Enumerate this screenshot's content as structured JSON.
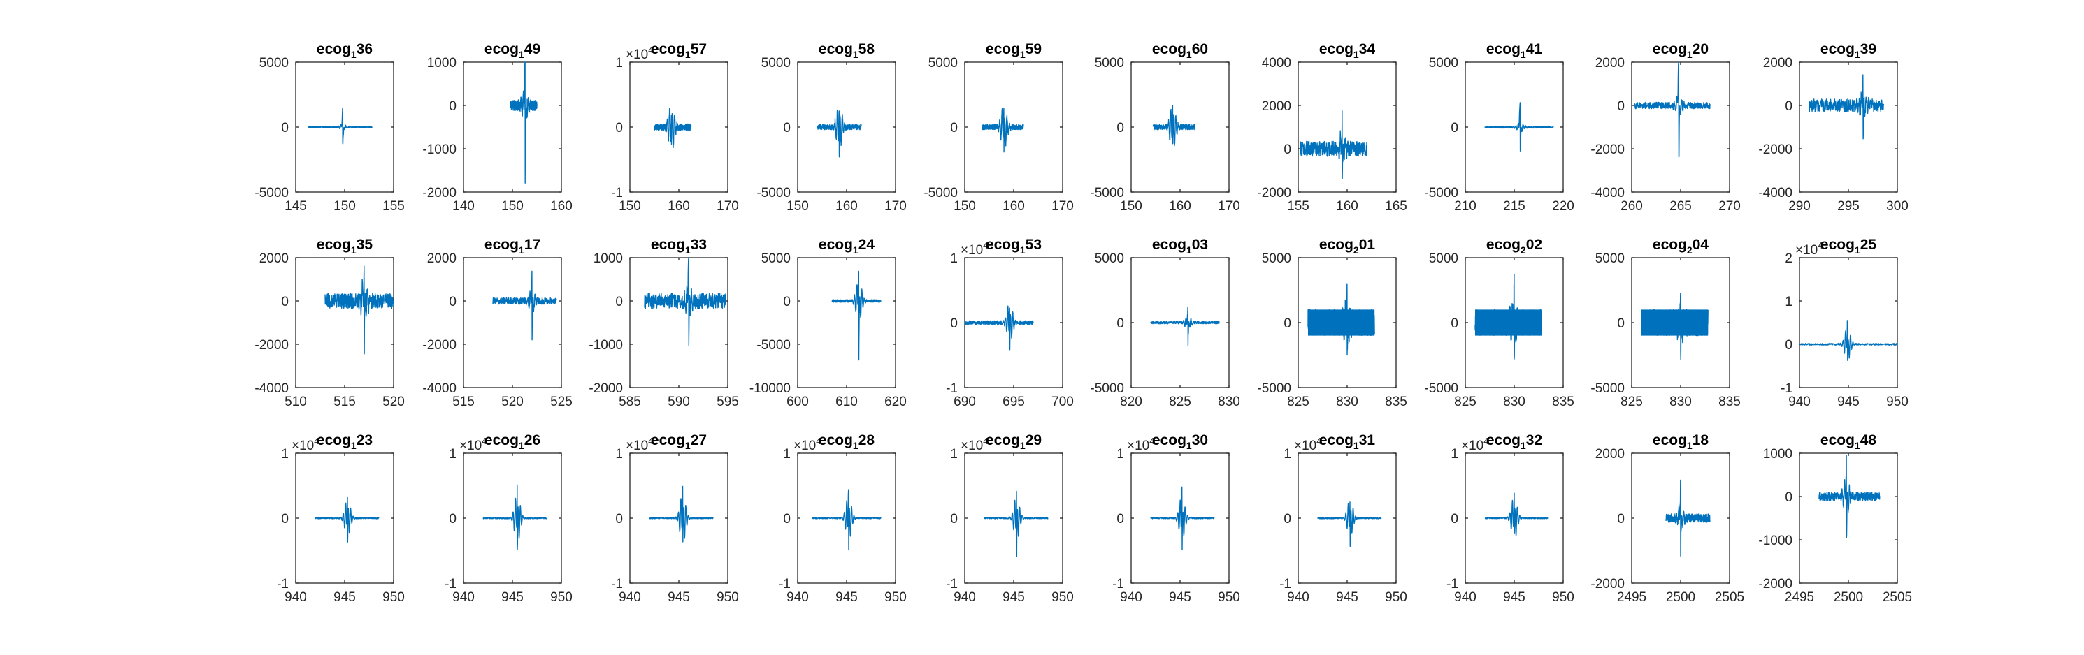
{
  "figure": {
    "line_color": "#0072BD",
    "axis_color": "#262626",
    "background": "#ffffff"
  },
  "chart_data": [
    {
      "type": "line",
      "title": {
        "base": "ecog",
        "sub": "1",
        "suffix": "36"
      },
      "xlim": [
        145,
        155
      ],
      "ylim": [
        -5000,
        5000
      ],
      "xticks": [
        145,
        150,
        155
      ],
      "yticks": [
        -5000,
        0,
        5000
      ],
      "ytick_labels": [
        "-5000",
        "0",
        "5000"
      ],
      "exponent": "",
      "trace": {
        "start": 146.3,
        "end": 152.8,
        "onset": 149.8,
        "amp": 1900,
        "noise": 60,
        "tail": 180,
        "dense": false
      }
    },
    {
      "type": "line",
      "title": {
        "base": "ecog",
        "sub": "1",
        "suffix": "49"
      },
      "xlim": [
        140,
        160
      ],
      "ylim": [
        -2000,
        1000
      ],
      "xticks": [
        140,
        150,
        160
      ],
      "yticks": [
        -2000,
        -1000,
        0,
        1000
      ],
      "ytick_labels": [
        "-2000",
        "-1000",
        "0",
        "1000"
      ],
      "exponent": "",
      "trace": {
        "start": 149.6,
        "end": 155.0,
        "onset": 152.6,
        "amp": 2000,
        "noise": 120,
        "tail": 300,
        "dense": false
      }
    },
    {
      "type": "line",
      "title": {
        "base": "ecog",
        "sub": "1",
        "suffix": "57"
      },
      "xlim": [
        150,
        170
      ],
      "ylim": [
        -1,
        1
      ],
      "xticks": [
        150,
        160,
        170
      ],
      "yticks": [
        -1,
        0,
        1
      ],
      "ytick_labels": [
        "-1",
        "0",
        "1"
      ],
      "exponent": "4",
      "trace": {
        "start": 155.0,
        "end": 162.5,
        "onset": 158.5,
        "amp": 0.45,
        "noise": 0.05,
        "tail": 0.35,
        "dense": false
      }
    },
    {
      "type": "line",
      "title": {
        "base": "ecog",
        "sub": "1",
        "suffix": "58"
      },
      "xlim": [
        150,
        170
      ],
      "ylim": [
        -5000,
        5000
      ],
      "xticks": [
        150,
        160,
        170
      ],
      "yticks": [
        -5000,
        0,
        5000
      ],
      "ytick_labels": [
        "-5000",
        "0",
        "5000"
      ],
      "exponent": "",
      "trace": {
        "start": 154.0,
        "end": 163.0,
        "onset": 158.5,
        "amp": 2700,
        "noise": 200,
        "tail": 1800,
        "dense": false
      }
    },
    {
      "type": "line",
      "title": {
        "base": "ecog",
        "sub": "1",
        "suffix": "59"
      },
      "xlim": [
        150,
        170
      ],
      "ylim": [
        -5000,
        5000
      ],
      "xticks": [
        150,
        160,
        170
      ],
      "yticks": [
        -5000,
        0,
        5000
      ],
      "ytick_labels": [
        "-5000",
        "0",
        "5000"
      ],
      "exponent": "",
      "trace": {
        "start": 153.5,
        "end": 162.0,
        "onset": 158.0,
        "amp": 2900,
        "noise": 200,
        "tail": 1700,
        "dense": false
      }
    },
    {
      "type": "line",
      "title": {
        "base": "ecog",
        "sub": "1",
        "suffix": "60"
      },
      "xlim": [
        150,
        170
      ],
      "ylim": [
        -5000,
        5000
      ],
      "xticks": [
        150,
        160,
        170
      ],
      "yticks": [
        -5000,
        0,
        5000
      ],
      "ytick_labels": [
        "-5000",
        "0",
        "5000"
      ],
      "exponent": "",
      "trace": {
        "start": 154.5,
        "end": 163.0,
        "onset": 158.5,
        "amp": 2700,
        "noise": 200,
        "tail": 1800,
        "dense": false
      }
    },
    {
      "type": "line",
      "title": {
        "base": "ecog",
        "sub": "1",
        "suffix": "34"
      },
      "xlim": [
        155,
        165
      ],
      "ylim": [
        -2000,
        4000
      ],
      "xticks": [
        155,
        160,
        165
      ],
      "yticks": [
        -2000,
        0,
        2000,
        4000
      ],
      "ytick_labels": [
        "-2000",
        "0",
        "2000",
        "4000"
      ],
      "exponent": "",
      "trace": {
        "start": 155.2,
        "end": 162.0,
        "onset": 159.5,
        "amp": 2100,
        "noise": 350,
        "tail": 700,
        "dense": false
      }
    },
    {
      "type": "line",
      "title": {
        "base": "ecog",
        "sub": "1",
        "suffix": "41"
      },
      "xlim": [
        210,
        220
      ],
      "ylim": [
        -5000,
        5000
      ],
      "xticks": [
        210,
        215,
        220
      ],
      "yticks": [
        -5000,
        0,
        5000
      ],
      "ytick_labels": [
        "-5000",
        "0",
        "5000"
      ],
      "exponent": "",
      "trace": {
        "start": 212.0,
        "end": 219.0,
        "onset": 215.6,
        "amp": 3300,
        "noise": 80,
        "tail": 400,
        "dense": false
      }
    },
    {
      "type": "line",
      "title": {
        "base": "ecog",
        "sub": "1",
        "suffix": "20"
      },
      "xlim": [
        260,
        270
      ],
      "ylim": [
        -4000,
        2000
      ],
      "xticks": [
        260,
        265,
        270
      ],
      "yticks": [
        -4000,
        -2000,
        0,
        2000
      ],
      "ytick_labels": [
        "-4000",
        "-2000",
        "0",
        "2000"
      ],
      "exponent": "",
      "trace": {
        "start": 260.3,
        "end": 268.0,
        "onset": 264.8,
        "amp": 3800,
        "noise": 150,
        "tail": 500,
        "dense": false
      }
    },
    {
      "type": "line",
      "title": {
        "base": "ecog",
        "sub": "1",
        "suffix": "39"
      },
      "xlim": [
        290,
        300
      ],
      "ylim": [
        -4000,
        2000
      ],
      "xticks": [
        290,
        295,
        300
      ],
      "yticks": [
        -4000,
        -2000,
        0,
        2000
      ],
      "ytick_labels": [
        "-4000",
        "-2000",
        "0",
        "2000"
      ],
      "exponent": "",
      "trace": {
        "start": 291.0,
        "end": 298.6,
        "onset": 296.5,
        "amp": 2300,
        "noise": 300,
        "tail": 700,
        "dense": false
      }
    },
    {
      "type": "line",
      "title": {
        "base": "ecog",
        "sub": "1",
        "suffix": "35"
      },
      "xlim": [
        510,
        520
      ],
      "ylim": [
        -4000,
        2000
      ],
      "xticks": [
        510,
        515,
        520
      ],
      "yticks": [
        -4000,
        -2000,
        0,
        2000
      ],
      "ytick_labels": [
        "-4000",
        "-2000",
        "0",
        "2000"
      ],
      "exponent": "",
      "trace": {
        "start": 513.0,
        "end": 520.0,
        "onset": 517.0,
        "amp": 3800,
        "noise": 350,
        "tail": 1100,
        "dense": false
      }
    },
    {
      "type": "line",
      "title": {
        "base": "ecog",
        "sub": "1",
        "suffix": "17"
      },
      "xlim": [
        515,
        525
      ],
      "ylim": [
        -4000,
        2000
      ],
      "xticks": [
        515,
        520,
        525
      ],
      "yticks": [
        -4000,
        -2000,
        0,
        2000
      ],
      "ytick_labels": [
        "-4000",
        "-2000",
        "0",
        "2000"
      ],
      "exponent": "",
      "trace": {
        "start": 518.0,
        "end": 524.5,
        "onset": 522.0,
        "amp": 2000,
        "noise": 150,
        "tail": 500,
        "dense": false
      }
    },
    {
      "type": "line",
      "title": {
        "base": "ecog",
        "sub": "1",
        "suffix": "33"
      },
      "xlim": [
        585,
        595
      ],
      "ylim": [
        -2000,
        1000
      ],
      "xticks": [
        585,
        590,
        595
      ],
      "yticks": [
        -2000,
        -1000,
        0,
        1000
      ],
      "ytick_labels": [
        "-2000",
        "-1000",
        "0",
        "1000"
      ],
      "exponent": "",
      "trace": {
        "start": 586.5,
        "end": 594.8,
        "onset": 591.0,
        "amp": 1800,
        "noise": 180,
        "tail": 300,
        "dense": false
      }
    },
    {
      "type": "line",
      "title": {
        "base": "ecog",
        "sub": "1",
        "suffix": "24"
      },
      "xlim": [
        600,
        620
      ],
      "ylim": [
        -10000,
        5000
      ],
      "xticks": [
        600,
        610,
        620
      ],
      "yticks": [
        -10000,
        -5000,
        0,
        5000
      ],
      "ytick_labels": [
        "-10000",
        "-5000",
        "0",
        "5000"
      ],
      "exponent": "",
      "trace": {
        "start": 607.0,
        "end": 617.0,
        "onset": 612.5,
        "amp": 7000,
        "noise": 150,
        "tail": 2500,
        "dense": false
      }
    },
    {
      "type": "line",
      "title": {
        "base": "ecog",
        "sub": "1",
        "suffix": "53"
      },
      "xlim": [
        690,
        700
      ],
      "ylim": [
        -1,
        1
      ],
      "xticks": [
        690,
        695,
        700
      ],
      "yticks": [
        -1,
        0,
        1
      ],
      "ytick_labels": [
        "-1",
        "0",
        "1"
      ],
      "exponent": "4",
      "trace": {
        "start": 690.0,
        "end": 697.0,
        "onset": 694.6,
        "amp": 0.55,
        "noise": 0.03,
        "tail": 0.3,
        "dense": false
      }
    },
    {
      "type": "line",
      "title": {
        "base": "ecog",
        "sub": "1",
        "suffix": "03"
      },
      "xlim": [
        820,
        830
      ],
      "ylim": [
        -5000,
        5000
      ],
      "xticks": [
        820,
        825,
        830
      ],
      "yticks": [
        -5000,
        0,
        5000
      ],
      "ytick_labels": [
        "-5000",
        "0",
        "5000"
      ],
      "exponent": "",
      "trace": {
        "start": 822.0,
        "end": 829.0,
        "onset": 825.8,
        "amp": 2200,
        "noise": 100,
        "tail": 500,
        "dense": false
      }
    },
    {
      "type": "line",
      "title": {
        "base": "ecog",
        "sub": "2",
        "suffix": "01"
      },
      "xlim": [
        825,
        835
      ],
      "ylim": [
        -5000,
        5000
      ],
      "xticks": [
        825,
        830,
        835
      ],
      "yticks": [
        -5000,
        0,
        5000
      ],
      "ytick_labels": [
        "-5000",
        "0",
        "5000"
      ],
      "exponent": "",
      "trace": {
        "start": 826.0,
        "end": 832.8,
        "onset": 830.0,
        "amp": 3700,
        "noise": 1000,
        "tail": 1000,
        "dense": true
      }
    },
    {
      "type": "line",
      "title": {
        "base": "ecog",
        "sub": "2",
        "suffix": "02"
      },
      "xlim": [
        825,
        835
      ],
      "ylim": [
        -5000,
        5000
      ],
      "xticks": [
        825,
        830,
        835
      ],
      "yticks": [
        -5000,
        0,
        5000
      ],
      "ytick_labels": [
        "-5000",
        "0",
        "5000"
      ],
      "exponent": "",
      "trace": {
        "start": 826.0,
        "end": 832.8,
        "onset": 830.0,
        "amp": 4000,
        "noise": 1000,
        "tail": 1200,
        "dense": true
      }
    },
    {
      "type": "line",
      "title": {
        "base": "ecog",
        "sub": "2",
        "suffix": "04"
      },
      "xlim": [
        825,
        835
      ],
      "ylim": [
        -5000,
        5000
      ],
      "xticks": [
        825,
        830,
        835
      ],
      "yticks": [
        -5000,
        0,
        5000
      ],
      "ytick_labels": [
        "-5000",
        "0",
        "5000"
      ],
      "exponent": "",
      "trace": {
        "start": 826.0,
        "end": 832.8,
        "onset": 830.0,
        "amp": 3800,
        "noise": 1000,
        "tail": 1000,
        "dense": true
      }
    },
    {
      "type": "line",
      "title": {
        "base": "ecog",
        "sub": "1",
        "suffix": "25"
      },
      "xlim": [
        940,
        950
      ],
      "ylim": [
        -1,
        2
      ],
      "xticks": [
        940,
        945,
        950
      ],
      "yticks": [
        -1,
        0,
        1,
        2
      ],
      "ytick_labels": [
        "-1",
        "0",
        "1",
        "2"
      ],
      "exponent": "4",
      "trace": {
        "start": 940.0,
        "end": 950.0,
        "onset": 944.9,
        "amp": 0.95,
        "noise": 0.02,
        "tail": 0.4,
        "dense": false
      }
    },
    {
      "type": "line",
      "title": {
        "base": "ecog",
        "sub": "1",
        "suffix": "23"
      },
      "xlim": [
        940,
        950
      ],
      "ylim": [
        -1,
        1
      ],
      "xticks": [
        940,
        945,
        950
      ],
      "yticks": [
        -1,
        0,
        1
      ],
      "ytick_labels": [
        "-1",
        "0",
        "1"
      ],
      "exponent": "4",
      "trace": {
        "start": 942.0,
        "end": 948.5,
        "onset": 945.3,
        "amp": 0.55,
        "noise": 0.01,
        "tail": 0.3,
        "dense": false
      }
    },
    {
      "type": "line",
      "title": {
        "base": "ecog",
        "sub": "1",
        "suffix": "26"
      },
      "xlim": [
        940,
        950
      ],
      "ylim": [
        -1,
        1
      ],
      "xticks": [
        940,
        945,
        950
      ],
      "yticks": [
        -1,
        0,
        1
      ],
      "ytick_labels": [
        "-1",
        "0",
        "1"
      ],
      "exponent": "4",
      "trace": {
        "start": 942.0,
        "end": 948.5,
        "onset": 945.5,
        "amp": 0.8,
        "noise": 0.01,
        "tail": 0.4,
        "dense": false
      }
    },
    {
      "type": "line",
      "title": {
        "base": "ecog",
        "sub": "1",
        "suffix": "27"
      },
      "xlim": [
        940,
        950
      ],
      "ylim": [
        -1,
        1
      ],
      "xticks": [
        940,
        945,
        950
      ],
      "yticks": [
        -1,
        0,
        1
      ],
      "ytick_labels": [
        "-1",
        "0",
        "1"
      ],
      "exponent": "4",
      "trace": {
        "start": 942.0,
        "end": 948.5,
        "onset": 945.4,
        "amp": 0.75,
        "noise": 0.01,
        "tail": 0.4,
        "dense": false
      }
    },
    {
      "type": "line",
      "title": {
        "base": "ecog",
        "sub": "1",
        "suffix": "28"
      },
      "xlim": [
        940,
        950
      ],
      "ylim": [
        -1,
        1
      ],
      "xticks": [
        940,
        945,
        950
      ],
      "yticks": [
        -1,
        0,
        1
      ],
      "ytick_labels": [
        "-1",
        "0",
        "1"
      ],
      "exponent": "4",
      "trace": {
        "start": 941.5,
        "end": 948.5,
        "onset": 945.2,
        "amp": 0.7,
        "noise": 0.01,
        "tail": 0.35,
        "dense": false
      }
    },
    {
      "type": "line",
      "title": {
        "base": "ecog",
        "sub": "1",
        "suffix": "29"
      },
      "xlim": [
        940,
        950
      ],
      "ylim": [
        -1,
        1
      ],
      "xticks": [
        940,
        945,
        950
      ],
      "yticks": [
        -1,
        0,
        1
      ],
      "ytick_labels": [
        "-1",
        "0",
        "1"
      ],
      "exponent": "4",
      "trace": {
        "start": 942.0,
        "end": 948.5,
        "onset": 945.3,
        "amp": 0.7,
        "noise": 0.01,
        "tail": 0.35,
        "dense": false
      }
    },
    {
      "type": "line",
      "title": {
        "base": "ecog",
        "sub": "1",
        "suffix": "30"
      },
      "xlim": [
        940,
        950
      ],
      "ylim": [
        -1,
        1
      ],
      "xticks": [
        940,
        945,
        950
      ],
      "yticks": [
        -1,
        0,
        1
      ],
      "ytick_labels": [
        "-1",
        "0",
        "1"
      ],
      "exponent": "4",
      "trace": {
        "start": 942.0,
        "end": 948.5,
        "onset": 945.2,
        "amp": 0.7,
        "noise": 0.01,
        "tail": 0.35,
        "dense": false
      }
    },
    {
      "type": "line",
      "title": {
        "base": "ecog",
        "sub": "1",
        "suffix": "31"
      },
      "xlim": [
        940,
        950
      ],
      "ylim": [
        -1,
        1
      ],
      "xticks": [
        940,
        945,
        950
      ],
      "yticks": [
        -1,
        0,
        1
      ],
      "ytick_labels": [
        "-1",
        "0",
        "1"
      ],
      "exponent": "4",
      "trace": {
        "start": 942.0,
        "end": 948.5,
        "onset": 945.3,
        "amp": 0.6,
        "noise": 0.01,
        "tail": 0.3,
        "dense": false
      }
    },
    {
      "type": "line",
      "title": {
        "base": "ecog",
        "sub": "1",
        "suffix": "32"
      },
      "xlim": [
        940,
        950
      ],
      "ylim": [
        -1,
        1
      ],
      "xticks": [
        940,
        945,
        950
      ],
      "yticks": [
        -1,
        0,
        1
      ],
      "ytick_labels": [
        "-1",
        "0",
        "1"
      ],
      "exponent": "4",
      "trace": {
        "start": 942.0,
        "end": 948.5,
        "onset": 945.0,
        "amp": 0.6,
        "noise": 0.01,
        "tail": 0.35,
        "dense": false
      }
    },
    {
      "type": "line",
      "title": {
        "base": "ecog",
        "sub": "1",
        "suffix": "18"
      },
      "xlim": [
        2495,
        2505
      ],
      "ylim": [
        -2000,
        2000
      ],
      "xticks": [
        2495,
        2500,
        2505
      ],
      "yticks": [
        -2000,
        0,
        2000
      ],
      "ytick_labels": [
        "-2000",
        "0",
        "2000"
      ],
      "exponent": "",
      "trace": {
        "start": 2498.5,
        "end": 2503.0,
        "onset": 2500.0,
        "amp": 1400,
        "noise": 130,
        "tail": 300,
        "dense": false
      }
    },
    {
      "type": "line",
      "title": {
        "base": "ecog",
        "sub": "1",
        "suffix": "48"
      },
      "xlim": [
        2495,
        2505
      ],
      "ylim": [
        -2000,
        1000
      ],
      "xticks": [
        2495,
        2500,
        2505
      ],
      "yticks": [
        -2000,
        -1000,
        0,
        1000
      ],
      "ytick_labels": [
        "-2000",
        "-1000",
        "0",
        "1000"
      ],
      "exponent": "",
      "trace": {
        "start": 2497.0,
        "end": 2503.2,
        "onset": 2499.8,
        "amp": 1400,
        "noise": 100,
        "tail": 400,
        "dense": false
      }
    }
  ]
}
